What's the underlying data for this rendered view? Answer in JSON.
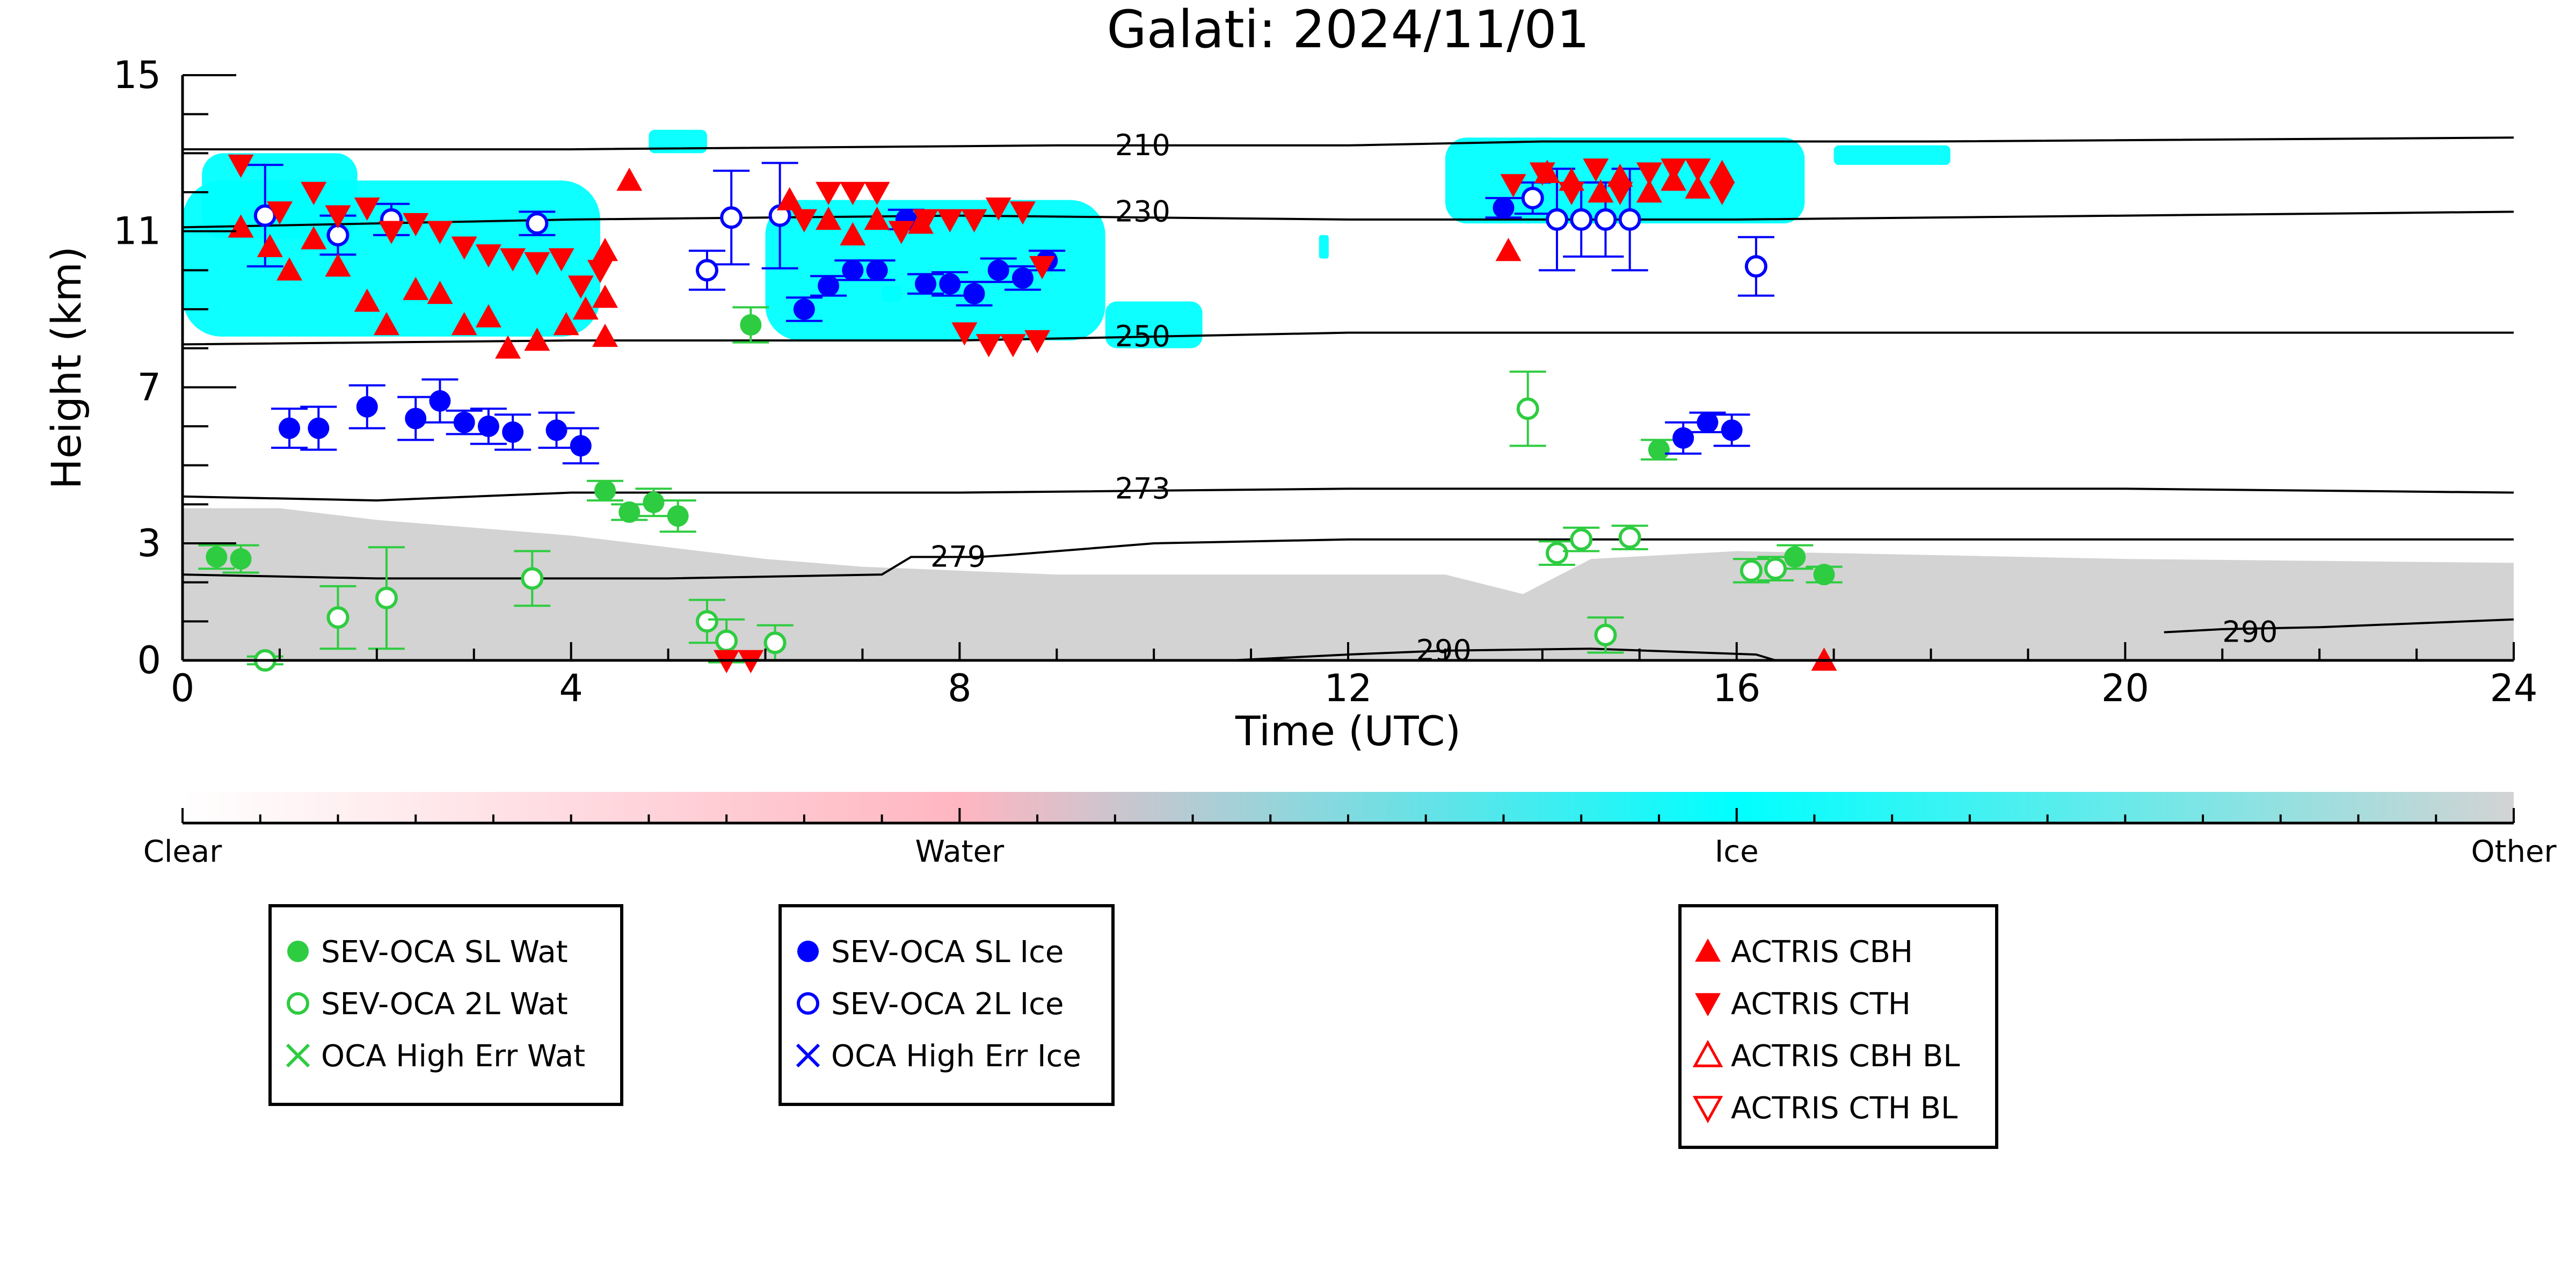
{
  "chart_data": {
    "type": "scatter",
    "title": "Galati: 2024/11/01",
    "xlabel": "Time (UTC)",
    "ylabel": "Height (km)",
    "xlim": [
      0,
      24
    ],
    "ylim": [
      0,
      15
    ],
    "x_ticks": [
      "0",
      "4",
      "8",
      "12",
      "16",
      "20",
      "24"
    ],
    "y_ticks": [
      "0",
      "3",
      "7",
      "11",
      "15"
    ],
    "grid": false,
    "background": {
      "description_type": "cloud classification field",
      "ice_color": "#00ffff",
      "other_color": "#d3d3d3",
      "ice_regions": [
        {
          "x_start": 0.0,
          "x_end": 4.3,
          "y_bottom": 8.3,
          "y_top": 12.3
        },
        {
          "x_start": 0.2,
          "x_end": 1.8,
          "y_bottom": 10.8,
          "y_top": 13.0
        },
        {
          "x_start": 4.8,
          "x_end": 5.4,
          "y_bottom": 13.0,
          "y_top": 13.6
        },
        {
          "x_start": 6.0,
          "x_end": 9.5,
          "y_bottom": 8.2,
          "y_top": 11.8
        },
        {
          "x_start": 9.5,
          "x_end": 10.5,
          "y_bottom": 8.0,
          "y_top": 9.2
        },
        {
          "x_start": 7.2,
          "x_end": 7.4,
          "y_bottom": 9.2,
          "y_top": 9.6
        },
        {
          "x_start": 11.7,
          "x_end": 11.8,
          "y_bottom": 10.3,
          "y_top": 10.9
        },
        {
          "x_start": 13.0,
          "x_end": 16.7,
          "y_bottom": 11.2,
          "y_top": 13.4
        },
        {
          "x_start": 17.0,
          "x_end": 18.2,
          "y_bottom": 12.7,
          "y_top": 13.2
        }
      ],
      "other_regions": [
        {
          "x_start": 0.0,
          "x_end": 24.0,
          "y_bottom": 0.0,
          "y_top_profile": [
            [
              0,
              3.9
            ],
            [
              1,
              3.9
            ],
            [
              2,
              3.6
            ],
            [
              3,
              3.4
            ],
            [
              4,
              3.2
            ],
            [
              5,
              2.9
            ],
            [
              6,
              2.6
            ],
            [
              7,
              2.4
            ],
            [
              8,
              2.3
            ],
            [
              9,
              2.2
            ],
            [
              10,
              2.2
            ],
            [
              12,
              2.2
            ],
            [
              13,
              2.2
            ],
            [
              13.8,
              1.7
            ],
            [
              14.5,
              2.6
            ],
            [
              16,
              2.8
            ],
            [
              18,
              2.7
            ],
            [
              20,
              2.6
            ],
            [
              24,
              2.5
            ]
          ]
        }
      ]
    },
    "isotherms": [
      {
        "label": "210",
        "label_x": 9.6,
        "label_y": 13.2,
        "points": [
          [
            0,
            13.1
          ],
          [
            4,
            13.1
          ],
          [
            9,
            13.2
          ],
          [
            12,
            13.2
          ],
          [
            14,
            13.3
          ],
          [
            18,
            13.3
          ],
          [
            24,
            13.4
          ]
        ]
      },
      {
        "label": "230",
        "label_x": 9.6,
        "label_y": 11.5,
        "points": [
          [
            0,
            11.1
          ],
          [
            4,
            11.3
          ],
          [
            8,
            11.4
          ],
          [
            12,
            11.3
          ],
          [
            16,
            11.3
          ],
          [
            20,
            11.4
          ],
          [
            24,
            11.5
          ]
        ]
      },
      {
        "label": "250",
        "label_x": 9.6,
        "label_y": 8.3,
        "points": [
          [
            0,
            8.1
          ],
          [
            4,
            8.2
          ],
          [
            8,
            8.2
          ],
          [
            10,
            8.3
          ],
          [
            12,
            8.4
          ],
          [
            16,
            8.4
          ],
          [
            20,
            8.4
          ],
          [
            24,
            8.4
          ]
        ]
      },
      {
        "label": "273",
        "label_x": 9.6,
        "label_y": 4.4,
        "points": [
          [
            0,
            4.2
          ],
          [
            2,
            4.1
          ],
          [
            4,
            4.3
          ],
          [
            8,
            4.3
          ],
          [
            12,
            4.4
          ],
          [
            16,
            4.4
          ],
          [
            20,
            4.4
          ],
          [
            24,
            4.3
          ]
        ]
      },
      {
        "label": "279",
        "label_x": 7.7,
        "label_y": 2.65,
        "points": [
          [
            0,
            2.2
          ],
          [
            2,
            2.1
          ],
          [
            4,
            2.1
          ],
          [
            5,
            2.1
          ],
          [
            7.2,
            2.2
          ],
          [
            7.5,
            2.65
          ],
          [
            8.2,
            2.65
          ],
          [
            8.5,
            2.7
          ],
          [
            10,
            3.0
          ],
          [
            12,
            3.1
          ],
          [
            16,
            3.1
          ],
          [
            20,
            3.1
          ],
          [
            24,
            3.1
          ]
        ]
      },
      {
        "label": "290",
        "label_x": 12.7,
        "label_y": 0.25,
        "points": [
          [
            10.8,
            0.0
          ],
          [
            12,
            0.15
          ],
          [
            13,
            0.25
          ],
          [
            14.5,
            0.3
          ],
          [
            16.2,
            0.15
          ],
          [
            16.4,
            0.0
          ]
        ]
      },
      {
        "label": "290",
        "label_x": 21.0,
        "label_y": 0.72,
        "points": [
          [
            20.4,
            0.72
          ],
          [
            21,
            0.8
          ],
          [
            22,
            0.85
          ],
          [
            23,
            0.95
          ],
          [
            24,
            1.05
          ]
        ]
      }
    ],
    "series": [
      {
        "name": "SEV-OCA SL Wat",
        "color": "#2ecc40",
        "marker": "filled-circle",
        "points": [
          [
            0.35,
            2.65,
            0.3
          ],
          [
            0.6,
            2.6,
            0.35
          ],
          [
            4.35,
            4.35,
            0.25
          ],
          [
            4.6,
            3.8,
            0.2
          ],
          [
            4.85,
            4.05,
            0.35
          ],
          [
            5.1,
            3.7,
            0.4
          ],
          [
            5.85,
            8.6,
            0.45
          ],
          [
            15.2,
            5.4,
            0.25
          ],
          [
            16.6,
            2.65,
            0.3
          ],
          [
            16.9,
            2.2,
            0.2
          ]
        ]
      },
      {
        "name": "SEV-OCA 2L Wat",
        "color": "#2ecc40",
        "marker": "open-circle",
        "points": [
          [
            0.85,
            0.0,
            0.1
          ],
          [
            1.6,
            1.1,
            0.8
          ],
          [
            2.1,
            1.6,
            1.3
          ],
          [
            3.6,
            2.1,
            0.7
          ],
          [
            5.4,
            1.0,
            0.55
          ],
          [
            5.6,
            0.5,
            0.55
          ],
          [
            6.1,
            0.45,
            0.45
          ],
          [
            13.85,
            6.45,
            0.95
          ],
          [
            14.15,
            2.75,
            0.3
          ],
          [
            14.4,
            3.1,
            0.3
          ],
          [
            14.65,
            0.65,
            0.45
          ],
          [
            14.9,
            3.15,
            0.3
          ],
          [
            16.15,
            2.3,
            0.3
          ],
          [
            16.4,
            2.35,
            0.3
          ]
        ]
      },
      {
        "name": "OCA High Err Wat",
        "color": "#2ecc40",
        "marker": "x",
        "points": []
      },
      {
        "name": "SEV-OCA SL Ice",
        "color": "#0000ff",
        "marker": "filled-circle",
        "points": [
          [
            1.1,
            5.95,
            0.5
          ],
          [
            1.4,
            5.95,
            0.55
          ],
          [
            1.9,
            6.5,
            0.55
          ],
          [
            2.4,
            6.2,
            0.55
          ],
          [
            2.65,
            6.65,
            0.55
          ],
          [
            2.9,
            6.1,
            0.3
          ],
          [
            3.15,
            6.0,
            0.45
          ],
          [
            3.4,
            5.85,
            0.45
          ],
          [
            3.85,
            5.9,
            0.45
          ],
          [
            4.1,
            5.5,
            0.45
          ],
          [
            6.4,
            9.0,
            0.3
          ],
          [
            6.65,
            9.6,
            0.25
          ],
          [
            6.9,
            10.0,
            0.25
          ],
          [
            7.15,
            10.0,
            0.25
          ],
          [
            7.45,
            11.3,
            0.25
          ],
          [
            7.65,
            9.65,
            0.25
          ],
          [
            7.9,
            9.65,
            0.3
          ],
          [
            8.15,
            9.4,
            0.3
          ],
          [
            8.4,
            10.0,
            0.3
          ],
          [
            8.65,
            9.8,
            0.3
          ],
          [
            8.9,
            10.25,
            0.25
          ],
          [
            13.6,
            11.6,
            0.25
          ],
          [
            15.45,
            5.7,
            0.4
          ],
          [
            15.7,
            6.1,
            0.25
          ],
          [
            15.95,
            5.9,
            0.4
          ]
        ]
      },
      {
        "name": "SEV-OCA 2L Ice",
        "color": "#0000ff",
        "marker": "open-circle",
        "points": [
          [
            0.85,
            11.4,
            1.3
          ],
          [
            1.6,
            10.9,
            0.5
          ],
          [
            2.15,
            11.3,
            0.4
          ],
          [
            3.65,
            11.2,
            0.3
          ],
          [
            5.4,
            10.0,
            0.5
          ],
          [
            5.65,
            11.35,
            1.2
          ],
          [
            6.15,
            11.4,
            1.35
          ],
          [
            13.9,
            11.85,
            0.4
          ],
          [
            14.15,
            11.3,
            1.3
          ],
          [
            14.4,
            11.3,
            0.95
          ],
          [
            14.65,
            11.3,
            0.95
          ],
          [
            14.9,
            11.3,
            1.3
          ],
          [
            16.2,
            10.1,
            0.75
          ]
        ]
      },
      {
        "name": "OCA High Err Ice",
        "color": "#0000ff",
        "marker": "x",
        "points": []
      },
      {
        "name": "ACTRIS CBH",
        "color": "#ff0000",
        "marker": "filled-triangle-up",
        "points": [
          [
            0.6,
            11.1
          ],
          [
            0.9,
            10.6
          ],
          [
            1.1,
            10.0
          ],
          [
            1.35,
            10.8
          ],
          [
            1.6,
            10.1
          ],
          [
            1.9,
            9.2
          ],
          [
            2.1,
            8.6
          ],
          [
            2.4,
            9.5
          ],
          [
            2.65,
            9.4
          ],
          [
            2.9,
            8.6
          ],
          [
            3.15,
            8.8
          ],
          [
            3.35,
            8.0
          ],
          [
            3.65,
            8.2
          ],
          [
            3.95,
            8.6
          ],
          [
            4.15,
            9.0
          ],
          [
            4.35,
            8.3
          ],
          [
            4.35,
            9.3
          ],
          [
            4.35,
            10.5
          ],
          [
            4.6,
            12.3
          ],
          [
            6.25,
            11.8
          ],
          [
            6.65,
            11.3
          ],
          [
            6.9,
            10.9
          ],
          [
            7.15,
            11.3
          ],
          [
            7.6,
            11.2
          ],
          [
            13.65,
            10.5
          ],
          [
            14.05,
            12.5
          ],
          [
            14.3,
            12.3
          ],
          [
            14.6,
            12.0
          ],
          [
            14.8,
            12.4
          ],
          [
            15.1,
            12.0
          ],
          [
            15.35,
            12.3
          ],
          [
            15.6,
            12.1
          ],
          [
            15.85,
            12.5
          ],
          [
            16.9,
            0.0
          ]
        ]
      },
      {
        "name": "ACTRIS CTH",
        "color": "#ff0000",
        "marker": "filled-triangle-down",
        "points": [
          [
            0.6,
            12.7
          ],
          [
            1.0,
            11.5
          ],
          [
            1.35,
            12.0
          ],
          [
            1.6,
            11.4
          ],
          [
            1.9,
            11.6
          ],
          [
            2.15,
            11.0
          ],
          [
            2.4,
            11.2
          ],
          [
            2.65,
            11.0
          ],
          [
            2.9,
            10.6
          ],
          [
            3.15,
            10.4
          ],
          [
            3.4,
            10.3
          ],
          [
            3.65,
            10.2
          ],
          [
            3.9,
            10.3
          ],
          [
            4.1,
            9.6
          ],
          [
            4.3,
            10.0
          ],
          [
            5.6,
            0.0
          ],
          [
            5.85,
            0.0
          ],
          [
            6.4,
            11.3
          ],
          [
            6.65,
            12.0
          ],
          [
            6.9,
            12.0
          ],
          [
            7.15,
            12.0
          ],
          [
            7.4,
            11.0
          ],
          [
            7.65,
            11.3
          ],
          [
            7.9,
            11.3
          ],
          [
            8.15,
            11.3
          ],
          [
            8.4,
            11.6
          ],
          [
            8.65,
            11.5
          ],
          [
            8.85,
            10.1
          ],
          [
            8.05,
            8.4
          ],
          [
            8.3,
            8.1
          ],
          [
            8.55,
            8.1
          ],
          [
            8.8,
            8.2
          ],
          [
            13.7,
            12.2
          ],
          [
            14.0,
            12.5
          ],
          [
            14.3,
            12.0
          ],
          [
            14.55,
            12.6
          ],
          [
            14.8,
            12.0
          ],
          [
            15.1,
            12.5
          ],
          [
            15.35,
            12.6
          ],
          [
            15.6,
            12.6
          ],
          [
            15.85,
            12.0
          ]
        ]
      },
      {
        "name": "ACTRIS CBH BL",
        "color": "#ff0000",
        "marker": "open-triangle-up",
        "points": []
      },
      {
        "name": "ACTRIS CTH BL",
        "color": "#ff0000",
        "marker": "open-triangle-down",
        "points": []
      }
    ],
    "colorbar": {
      "labels": [
        "Clear",
        "Water",
        "Ice",
        "Other"
      ],
      "colors": [
        "#ffffff",
        "#ffb6c1",
        "#00ffff",
        "#d3d3d3"
      ]
    },
    "legends": [
      {
        "entries": [
          "SEV-OCA SL Wat",
          "SEV-OCA 2L Wat",
          "OCA High Err Wat"
        ]
      },
      {
        "entries": [
          "SEV-OCA SL Ice",
          "SEV-OCA 2L Ice",
          "OCA High Err Ice"
        ]
      },
      {
        "entries": [
          "ACTRIS CBH",
          "ACTRIS CTH",
          "ACTRIS CBH BL",
          "ACTRIS CTH BL"
        ]
      }
    ]
  }
}
